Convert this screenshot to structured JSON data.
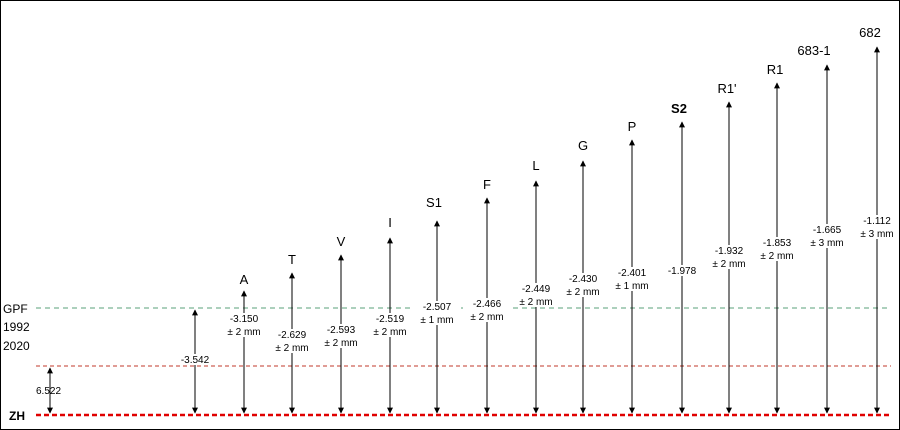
{
  "levels": {
    "gpf": {
      "label": "GPF",
      "color": "#5aa07a"
    },
    "y1992": {
      "label": "1992",
      "color": "#c0392b"
    },
    "y2020": {
      "label": "2020"
    },
    "zh": {
      "label": "ZH",
      "color": "#e00000"
    }
  },
  "offset_1992": "6.522",
  "points": [
    {
      "id": "gpf-ref",
      "name": "",
      "value": "-3.542",
      "tol": ""
    },
    {
      "id": "A",
      "name": "A",
      "value": "-3.150",
      "tol": "± 2 mm"
    },
    {
      "id": "T",
      "name": "T",
      "value": "-2.629",
      "tol": "± 2 mm"
    },
    {
      "id": "V",
      "name": "V",
      "value": "-2.593",
      "tol": "± 2 mm"
    },
    {
      "id": "I",
      "name": "I",
      "value": "-2.519",
      "tol": "± 2 mm"
    },
    {
      "id": "S1",
      "name": "S1",
      "value": "-2.507",
      "tol": "± 1 mm"
    },
    {
      "id": "F",
      "name": "F",
      "value": "-2.466",
      "tol": "± 2 mm"
    },
    {
      "id": "L",
      "name": "L",
      "value": "-2.449",
      "tol": "± 2 mm"
    },
    {
      "id": "G",
      "name": "G",
      "value": "-2.430",
      "tol": "± 2 mm"
    },
    {
      "id": "P",
      "name": "P",
      "value": "-2.401",
      "tol": "± 1 mm"
    },
    {
      "id": "S2",
      "name": "S2",
      "value": "-1.978",
      "tol": "",
      "bold": true
    },
    {
      "id": "R1p",
      "name": "R1'",
      "value": "-1.932",
      "tol": "± 2 mm"
    },
    {
      "id": "R1",
      "name": "R1",
      "value": "-1.853",
      "tol": "± 2 mm"
    },
    {
      "id": "683-1",
      "name": "683-1",
      "value": "-1.665",
      "tol": "± 3 mm"
    },
    {
      "id": "682",
      "name": "682",
      "value": "-1.112",
      "tol": "± 3 mm"
    }
  ]
}
